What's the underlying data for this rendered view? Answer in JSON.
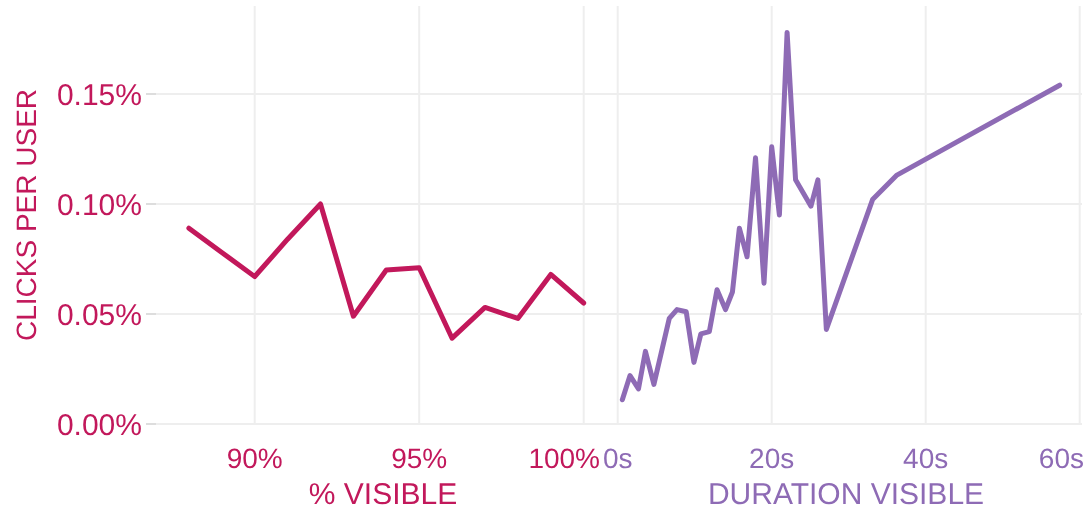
{
  "chart_data": [
    {
      "type": "line",
      "xlabel": "% VISIBLE",
      "ylabel": "CLICKS PER USER",
      "x": [
        88,
        89,
        90,
        91,
        92,
        93,
        94,
        95,
        96,
        97,
        98,
        99,
        100
      ],
      "xlim": [
        87,
        100.8
      ],
      "xticks": [
        {
          "value": 90,
          "label": "90%"
        },
        {
          "value": 95,
          "label": "95%"
        },
        {
          "value": 100,
          "label": "100%"
        }
      ],
      "ylim": [
        0,
        0.19
      ],
      "yticks": [
        {
          "value": 0,
          "label": "0.00%"
        },
        {
          "value": 0.05,
          "label": "0.05%"
        },
        {
          "value": 0.1,
          "label": "0.10%"
        },
        {
          "value": 0.15,
          "label": "0.15%"
        }
      ],
      "grid": true,
      "marker": "none",
      "series": [
        {
          "color": "#c2185b",
          "values": [
            0.089,
            0.078,
            0.067,
            0.084,
            0.1,
            0.049,
            0.07,
            0.071,
            0.039,
            0.053,
            0.048,
            0.068,
            0.055
          ]
        }
      ]
    },
    {
      "type": "line",
      "xlabel": "DURATION VISIBLE",
      "x": [
        0.6,
        1.6,
        2.7,
        3.6,
        4.7,
        6.7,
        7.7,
        8.9,
        9.9,
        10.8,
        11.9,
        12.9,
        14,
        14.9,
        15.8,
        16.8,
        17.9,
        19,
        20,
        21,
        22,
        23.1,
        25.1,
        26,
        27.1,
        33.1,
        36.2,
        57.4
      ],
      "xlim": [
        -1,
        60.3
      ],
      "xticks": [
        {
          "value": 0,
          "label": "0s"
        },
        {
          "value": 20,
          "label": "20s"
        },
        {
          "value": 40,
          "label": "40s"
        },
        {
          "value": 60,
          "label": "60s"
        }
      ],
      "ylim": [
        0,
        0.19
      ],
      "tick_labels": "x",
      "grid": true,
      "marker": "none",
      "series": [
        {
          "color": "#8e6bb5",
          "values": [
            0.011,
            0.022,
            0.016,
            0.033,
            0.018,
            0.048,
            0.052,
            0.051,
            0.028,
            0.041,
            0.042,
            0.061,
            0.052,
            0.06,
            0.089,
            0.076,
            0.121,
            0.064,
            0.126,
            0.095,
            0.178,
            0.111,
            0.099,
            0.111,
            0.043,
            0.102,
            0.113,
            0.154
          ]
        }
      ]
    }
  ]
}
